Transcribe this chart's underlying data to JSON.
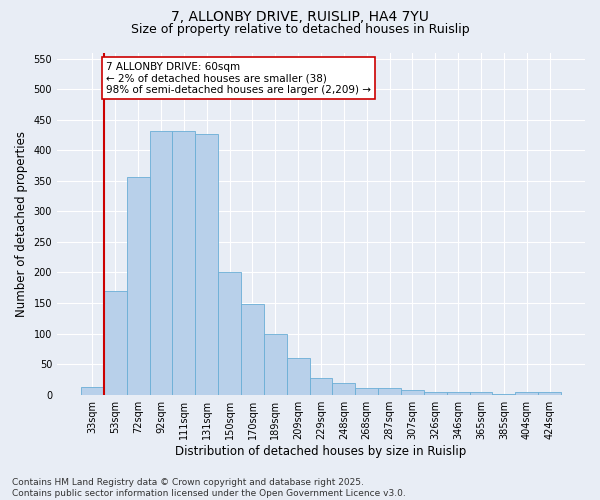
{
  "title_line1": "7, ALLONBY DRIVE, RUISLIP, HA4 7YU",
  "title_line2": "Size of property relative to detached houses in Ruislip",
  "xlabel": "Distribution of detached houses by size in Ruislip",
  "ylabel": "Number of detached properties",
  "categories": [
    "33sqm",
    "53sqm",
    "72sqm",
    "92sqm",
    "111sqm",
    "131sqm",
    "150sqm",
    "170sqm",
    "189sqm",
    "209sqm",
    "229sqm",
    "248sqm",
    "268sqm",
    "287sqm",
    "307sqm",
    "326sqm",
    "346sqm",
    "365sqm",
    "385sqm",
    "404sqm",
    "424sqm"
  ],
  "values": [
    13,
    170,
    357,
    431,
    431,
    427,
    200,
    148,
    100,
    60,
    27,
    19,
    11,
    11,
    7,
    5,
    5,
    4,
    1,
    4,
    4
  ],
  "bar_color": "#b8d0ea",
  "bar_edge_color": "#6aaed6",
  "vline_x_index": 1,
  "vline_color": "#cc0000",
  "annotation_text": "7 ALLONBY DRIVE: 60sqm\n← 2% of detached houses are smaller (38)\n98% of semi-detached houses are larger (2,209) →",
  "annotation_box_color": "#ffffff",
  "annotation_box_edge": "#cc0000",
  "ylim": [
    0,
    560
  ],
  "yticks": [
    0,
    50,
    100,
    150,
    200,
    250,
    300,
    350,
    400,
    450,
    500,
    550
  ],
  "fig_background_color": "#e8edf5",
  "plot_background_color": "#e8edf5",
  "grid_color": "#ffffff",
  "footer_line1": "Contains HM Land Registry data © Crown copyright and database right 2025.",
  "footer_line2": "Contains public sector information licensed under the Open Government Licence v3.0.",
  "title_fontsize": 10,
  "subtitle_fontsize": 9,
  "tick_fontsize": 7,
  "label_fontsize": 8.5,
  "annotation_fontsize": 7.5,
  "footer_fontsize": 6.5
}
